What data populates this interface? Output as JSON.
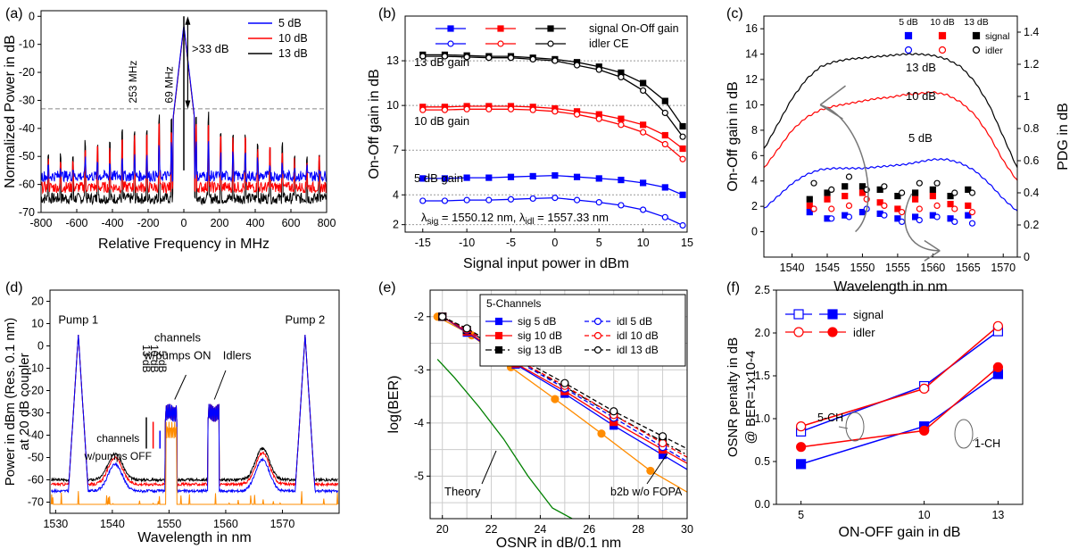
{
  "panels": [
    {
      "label": "(a)",
      "type": "line",
      "xlabel": "Relative Frequency in MHz",
      "ylabel": "Normalized Power in dB",
      "xlim": [
        -800,
        800
      ],
      "ylim": [
        -70,
        2
      ],
      "xticks": [
        -800,
        -600,
        -400,
        -200,
        0,
        200,
        400,
        600,
        800
      ],
      "yticks": [
        0,
        -10,
        -20,
        -30,
        -40,
        -50,
        -60,
        -70
      ],
      "series": [
        {
          "name": "5 dB",
          "color": "#0000ff",
          "noise_floor": -57,
          "peak": 0,
          "spur_levels": [
            -46,
            -50,
            -52,
            -54
          ]
        },
        {
          "name": "10 dB",
          "color": "#ff0000",
          "noise_floor": -61,
          "peak": 0,
          "spur_levels": [
            -40,
            -44,
            -48,
            -52
          ]
        },
        {
          "name": "13 dB",
          "color": "#000000",
          "noise_floor": -65,
          "peak": 0,
          "spur_levels": [
            -36,
            -42,
            -46,
            -50
          ]
        }
      ],
      "reference_line": -33,
      "annotations": [
        "253 MHz",
        "69 MHz",
        ">33 dB"
      ],
      "legend": "top-right"
    },
    {
      "label": "(b)",
      "type": "line",
      "xlabel": "Signal input power in dBm",
      "ylabel": "On-Off gain in dB",
      "xlim": [
        -17,
        15
      ],
      "ylim": [
        1.5,
        16
      ],
      "xticks": [
        -15,
        -10,
        -5,
        0,
        5,
        10,
        15
      ],
      "yticks": [
        2,
        4,
        7,
        10,
        13
      ],
      "x": [
        -15,
        -12.5,
        -10,
        -7.5,
        -5,
        -2.5,
        0,
        2.5,
        5,
        7.5,
        10,
        12.5,
        14.5
      ],
      "series": [
        {
          "name": "signal 5 dB",
          "color": "#0000ff",
          "marker": "square",
          "values": [
            5.1,
            5.1,
            5.15,
            5.15,
            5.2,
            5.25,
            5.3,
            5.2,
            5.1,
            5.0,
            4.8,
            4.5,
            4.0
          ]
        },
        {
          "name": "idler 5 dB",
          "color": "#0000ff",
          "marker": "circle",
          "values": [
            3.6,
            3.6,
            3.65,
            3.65,
            3.7,
            3.75,
            3.8,
            3.65,
            3.5,
            3.3,
            3.0,
            2.5,
            1.95
          ]
        },
        {
          "name": "signal 10 dB",
          "color": "#ff0000",
          "marker": "square",
          "values": [
            9.9,
            9.9,
            9.95,
            9.95,
            9.95,
            9.9,
            9.8,
            9.6,
            9.4,
            9.1,
            8.7,
            8.0,
            7.1
          ]
        },
        {
          "name": "idler 10 dB",
          "color": "#ff0000",
          "marker": "circle",
          "values": [
            9.7,
            9.7,
            9.75,
            9.75,
            9.75,
            9.7,
            9.6,
            9.4,
            9.1,
            8.7,
            8.2,
            7.4,
            6.4
          ]
        },
        {
          "name": "signal 13 dB",
          "color": "#000000",
          "marker": "square",
          "values": [
            13.4,
            13.4,
            13.35,
            13.3,
            13.3,
            13.2,
            13.1,
            12.9,
            12.6,
            12.2,
            11.5,
            10.3,
            8.6
          ]
        },
        {
          "name": "idler 13 dB",
          "color": "#000000",
          "marker": "circle",
          "values": [
            13.3,
            13.3,
            13.25,
            13.2,
            13.2,
            13.1,
            13.0,
            12.7,
            12.4,
            11.9,
            11.0,
            9.5,
            7.9
          ]
        }
      ],
      "legend_labels": [
        "signal On-Off gain",
        "idler CE"
      ],
      "annotations": [
        "13 dB gain",
        "10 dB gain",
        "5 dB gain"
      ],
      "footnote": {
        "a": "λ",
        "b": "sig",
        "c": " = 1550.12 nm,  λ",
        "d": "idl",
        "e": " = 1557.33 nm"
      },
      "legend": "top"
    },
    {
      "label": "(c)",
      "type": "line",
      "xlabel": "Wavelength in nm",
      "ylabel": "On-Off gain in dB",
      "ylabel_right": "PDG in dB",
      "xlim": [
        1536,
        1572
      ],
      "ylim": [
        -2,
        17
      ],
      "ylim_right": [
        0,
        1.5
      ],
      "xticks": [
        1540,
        1545,
        1550,
        1555,
        1560,
        1565,
        1570
      ],
      "yticks": [
        0,
        2,
        4,
        6,
        8,
        10,
        12,
        14,
        16
      ],
      "yticks_right": [
        0.0,
        0.2,
        0.4,
        0.6,
        0.8,
        1.0,
        1.2,
        1.4
      ],
      "curves": [
        {
          "name": "13 dB",
          "color": "#000000",
          "x": [
            1536,
            1538,
            1540,
            1542,
            1544,
            1546,
            1548,
            1550,
            1552,
            1554,
            1556,
            1558,
            1560,
            1562,
            1564,
            1566,
            1568,
            1570,
            1572
          ],
          "values": [
            6.5,
            8.5,
            10.5,
            12.0,
            13.0,
            13.4,
            13.6,
            13.7,
            13.8,
            13.9,
            14.0,
            14.0,
            13.9,
            13.6,
            13.0,
            11.8,
            10.0,
            7.5,
            5.0
          ]
        },
        {
          "name": "10 dB",
          "color": "#ff0000",
          "x": [
            1536,
            1538,
            1540,
            1542,
            1544,
            1546,
            1548,
            1550,
            1552,
            1554,
            1556,
            1558,
            1560,
            1562,
            1564,
            1566,
            1568,
            1570,
            1572
          ],
          "values": [
            5.0,
            6.5,
            8.0,
            9.0,
            9.6,
            9.9,
            10.1,
            10.3,
            10.5,
            10.6,
            10.8,
            10.9,
            11.0,
            10.8,
            10.2,
            9.2,
            7.6,
            5.6,
            4.0
          ]
        },
        {
          "name": "5 dB",
          "color": "#0000ff",
          "x": [
            1536,
            1538,
            1540,
            1542,
            1544,
            1546,
            1548,
            1550,
            1552,
            1554,
            1556,
            1558,
            1560,
            1562,
            1564,
            1566,
            1568,
            1570,
            1572
          ],
          "values": [
            1.8,
            2.8,
            3.8,
            4.5,
            4.9,
            5.0,
            5.0,
            5.0,
            5.1,
            5.2,
            5.3,
            5.5,
            5.7,
            5.7,
            5.4,
            4.8,
            3.8,
            2.6,
            1.6
          ]
        }
      ],
      "pdg_x": [
        1542.5,
        1545,
        1547.5,
        1550,
        1552.5,
        1555,
        1557.5,
        1560,
        1562.5,
        1565
      ],
      "pdg_points": [
        {
          "name": "5 dB signal",
          "color": "#0000ff",
          "marker": "square",
          "values": [
            0.28,
            0.24,
            0.26,
            0.28,
            0.27,
            0.24,
            0.25,
            0.26,
            0.24,
            0.26
          ]
        },
        {
          "name": "5 dB idler",
          "color": "#0000ff",
          "marker": "circle",
          "values": [
            0.3,
            0.24,
            0.25,
            0.3,
            0.26,
            0.22,
            0.23,
            0.25,
            0.22,
            0.21
          ]
        },
        {
          "name": "10 dB signal",
          "color": "#ff0000",
          "marker": "square",
          "values": [
            0.32,
            0.36,
            0.38,
            0.4,
            0.34,
            0.3,
            0.36,
            0.38,
            0.33,
            0.32
          ]
        },
        {
          "name": "10 dB idler",
          "color": "#ff0000",
          "marker": "circle",
          "values": [
            0.3,
            0.3,
            0.32,
            0.36,
            0.32,
            0.28,
            0.3,
            0.32,
            0.3,
            0.28
          ]
        },
        {
          "name": "13 dB signal",
          "color": "#000000",
          "marker": "square",
          "values": [
            0.36,
            0.4,
            0.44,
            0.44,
            0.42,
            0.38,
            0.4,
            0.42,
            0.38,
            0.42
          ]
        },
        {
          "name": "13 dB idler",
          "color": "#000000",
          "marker": "circle",
          "values": [
            0.46,
            0.42,
            0.5,
            0.42,
            0.44,
            0.4,
            0.46,
            0.46,
            0.4,
            0.4
          ]
        }
      ],
      "legend_cols": [
        "5 dB",
        "10 dB",
        "13 dB"
      ],
      "legend_rows": [
        "signal",
        "idler"
      ],
      "annotations": [
        "13 dB",
        "10 dB",
        "5 dB"
      ],
      "legend": "top-right"
    },
    {
      "label": "(d)",
      "type": "line",
      "xlabel": "Wavelength in nm",
      "ylabel_lines": [
        "Power in dBm (Res. 0.1 nm)",
        "at 20 dB coupler"
      ],
      "xlim": [
        1529,
        1580
      ],
      "ylim": [
        -75,
        25
      ],
      "xticks": [
        1530,
        1540,
        1550,
        1560,
        1570
      ],
      "yticks": [
        20,
        10,
        0,
        -10,
        -20,
        -30,
        -40,
        -50,
        -60,
        -70
      ],
      "annotations": [
        "Pump 1",
        "Pump 2",
        "channels",
        "w/pumps ON",
        "Idlers",
        "13 dB",
        "10 dB",
        "5 dB",
        "channels",
        "w/pumps OFF"
      ],
      "colors": {
        "blue": "#0000ff",
        "red": "#ff0000",
        "black": "#000000",
        "orange": "#ff8c00"
      }
    },
    {
      "label": "(e)",
      "type": "line",
      "xlabel": "OSNR in dB/0.1 nm",
      "ylabel": "log(BER)",
      "xlim": [
        19.5,
        30
      ],
      "ylim": [
        -5.8,
        -1.5
      ],
      "xticks": [
        20,
        22,
        24,
        26,
        28,
        30
      ],
      "yticks": [
        -2,
        -3,
        -4,
        -5
      ],
      "x": [
        20,
        21,
        23,
        25,
        27,
        29
      ],
      "series": [
        {
          "name": "sig 5 dB",
          "color": "#0000ff",
          "marker": "square",
          "dash": "solid",
          "values": [
            -2.0,
            -2.3,
            -2.9,
            -3.45,
            -4.05,
            -4.6
          ]
        },
        {
          "name": "sig 10 dB",
          "color": "#ff0000",
          "marker": "square",
          "dash": "solid",
          "values": [
            -2.0,
            -2.28,
            -2.88,
            -3.4,
            -3.98,
            -4.5
          ]
        },
        {
          "name": "sig 13 dB",
          "color": "#000000",
          "marker": "square",
          "dash": "dashdot",
          "values": [
            -2.0,
            -2.25,
            -2.8,
            -3.32,
            -3.85,
            -4.35
          ]
        },
        {
          "name": "idl 5 dB",
          "color": "#0000ff",
          "marker": "circle",
          "dash": "dash",
          "values": [
            -2.0,
            -2.25,
            -2.82,
            -3.35,
            -3.9,
            -4.45
          ]
        },
        {
          "name": "idl 10 dB",
          "color": "#ff0000",
          "marker": "circle",
          "dash": "dash",
          "values": [
            -2.0,
            -2.24,
            -2.8,
            -3.3,
            -3.85,
            -4.38
          ]
        },
        {
          "name": "idl 13 dB",
          "color": "#000000",
          "marker": "circle",
          "dash": "dash",
          "values": [
            -2.0,
            -2.22,
            -2.75,
            -3.25,
            -3.78,
            -4.25
          ]
        }
      ],
      "b2b": {
        "name": "b2b w/o FOPA",
        "color": "#ff8c00",
        "x": [
          19.8,
          21.2,
          22.8,
          24.6,
          26.5,
          28.5
        ],
        "values": [
          -2.0,
          -2.35,
          -2.95,
          -3.55,
          -4.2,
          -4.9
        ]
      },
      "theory": {
        "name": "Theory",
        "color": "#008000",
        "x": [
          19.8,
          20.5,
          21.5,
          22.5,
          23.5,
          24.5,
          25.3
        ],
        "values": [
          -2.8,
          -3.15,
          -3.7,
          -4.3,
          -5.0,
          -5.6,
          -5.8
        ]
      },
      "legend_title": "5-Channels",
      "legend": "top-right"
    },
    {
      "label": "(f)",
      "type": "line",
      "xlabel": "ON-OFF gain in dB",
      "ylabel_lines": [
        "OSNR penalty in dB",
        "@ BER=1x10-4"
      ],
      "xlim": [
        4,
        14
      ],
      "ylim": [
        0,
        2.5
      ],
      "xtick_labels": [
        "5",
        "10",
        "13"
      ],
      "yticks": [
        0.0,
        0.5,
        1.0,
        1.5,
        2.0,
        2.5
      ],
      "x": [
        5,
        10,
        13
      ],
      "series": [
        {
          "name": "5-CH signal",
          "color": "#0000ff",
          "marker": "square-open",
          "values": [
            0.85,
            1.38,
            2.02
          ]
        },
        {
          "name": "5-CH idler",
          "color": "#ff0000",
          "marker": "circle-open",
          "values": [
            0.91,
            1.35,
            2.08
          ]
        },
        {
          "name": "1-CH signal",
          "color": "#0000ff",
          "marker": "square-filled",
          "values": [
            0.47,
            0.91,
            1.52
          ]
        },
        {
          "name": "1-CH idler",
          "color": "#ff0000",
          "marker": "circle-filled",
          "values": [
            0.67,
            0.86,
            1.6
          ]
        }
      ],
      "legend_labels": [
        "signal",
        "idler"
      ],
      "annotations": [
        "5-CH",
        "1-CH"
      ],
      "legend": "top-left"
    }
  ]
}
